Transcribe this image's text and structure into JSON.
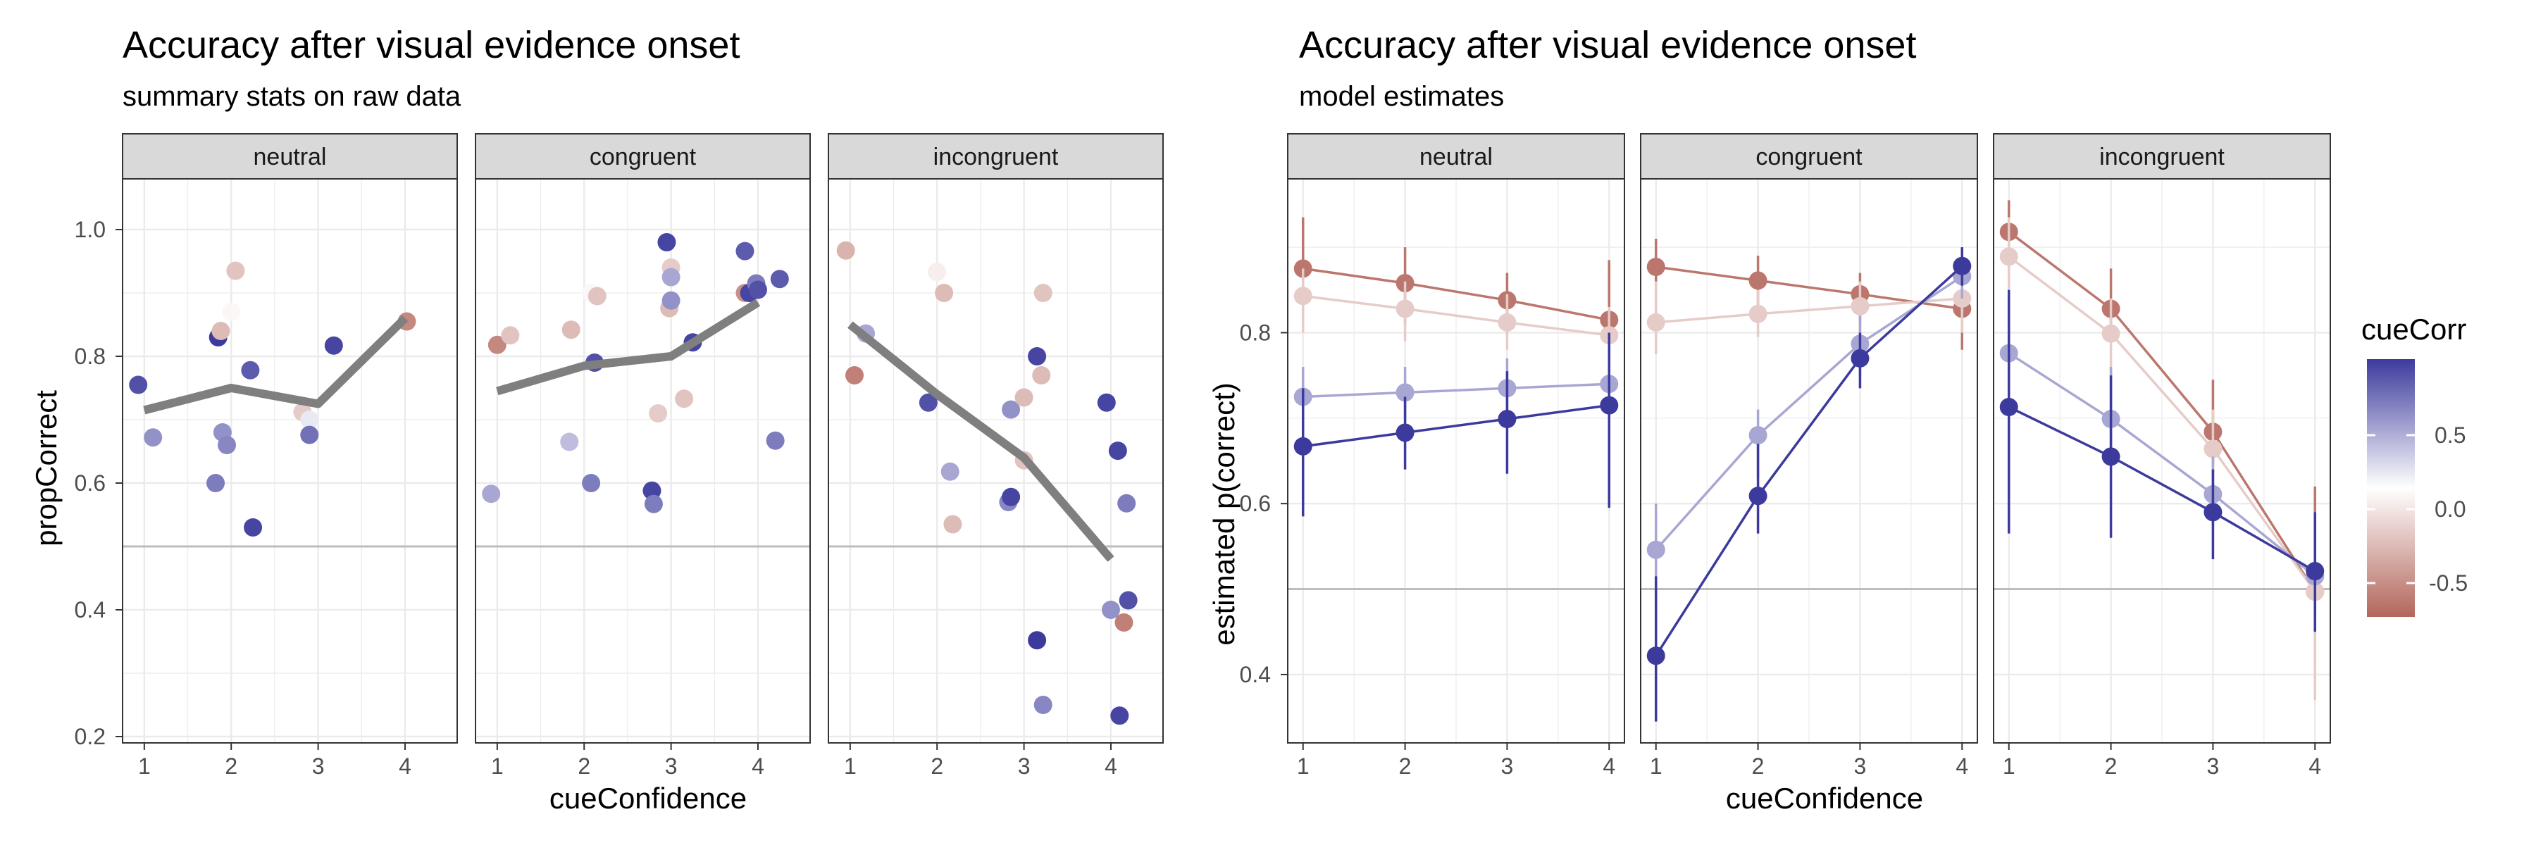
{
  "colors": {
    "positive": "#3c3a9c",
    "neutral": "#ffffff",
    "negative": "#b3665c",
    "strip_bg": "#d9d9d9",
    "grid": "#ebebeb",
    "chance_line": "#bdbdbd",
    "mean_line": "#7f7f7f"
  },
  "legend": {
    "title": "cueCorr",
    "ticks": [
      "0.5",
      "0.0",
      "-0.5"
    ],
    "placement": "right"
  },
  "chart_data": [
    {
      "type": "scatter",
      "title": "Accuracy after visual evidence onset",
      "subtitle": "summary stats on raw data",
      "xlabel": "cueConfidence",
      "ylabel": "propCorrect",
      "xlim": [
        0.75,
        4.6
      ],
      "ylim": [
        0.19,
        1.08
      ],
      "x_ticks": [
        "1",
        "2",
        "3",
        "4"
      ],
      "y_ticks": [
        "0.2",
        "0.4",
        "0.6",
        "0.8",
        "1.0"
      ],
      "reference_line": 0.5,
      "grid": true,
      "panels": [
        {
          "label": "neutral",
          "mean_line": [
            [
              1,
              0.715
            ],
            [
              2,
              0.75
            ],
            [
              3,
              0.725
            ],
            [
              4,
              0.86
            ]
          ],
          "points": [
            {
              "x": 0.93,
              "y": 0.755,
              "c": 0.8
            },
            {
              "x": 1.1,
              "y": 0.672,
              "c": 0.5
            },
            {
              "x": 1.82,
              "y": 0.6,
              "c": 0.6
            },
            {
              "x": 1.85,
              "y": 0.83,
              "c": 0.9
            },
            {
              "x": 1.88,
              "y": 0.84,
              "c": -0.4
            },
            {
              "x": 1.9,
              "y": 0.68,
              "c": 0.5
            },
            {
              "x": 1.95,
              "y": 0.66,
              "c": 0.55
            },
            {
              "x": 2.0,
              "y": 0.87,
              "c": -0.05
            },
            {
              "x": 2.05,
              "y": 0.935,
              "c": -0.35
            },
            {
              "x": 2.22,
              "y": 0.778,
              "c": 0.75
            },
            {
              "x": 2.25,
              "y": 0.53,
              "c": 0.85
            },
            {
              "x": 2.82,
              "y": 0.712,
              "c": -0.3
            },
            {
              "x": 2.9,
              "y": 0.7,
              "c": 0.1
            },
            {
              "x": 2.9,
              "y": 0.676,
              "c": 0.65
            },
            {
              "x": 3.18,
              "y": 0.817,
              "c": 0.85
            },
            {
              "x": 4.02,
              "y": 0.855,
              "c": -0.7
            }
          ]
        },
        {
          "label": "congruent",
          "mean_line": [
            [
              1,
              0.745
            ],
            [
              2,
              0.785
            ],
            [
              3,
              0.8
            ],
            [
              4,
              0.885
            ]
          ],
          "points": [
            {
              "x": 0.93,
              "y": 0.583,
              "c": 0.4
            },
            {
              "x": 1.0,
              "y": 0.818,
              "c": -0.7
            },
            {
              "x": 1.15,
              "y": 0.833,
              "c": -0.35
            },
            {
              "x": 1.83,
              "y": 0.665,
              "c": 0.3
            },
            {
              "x": 1.85,
              "y": 0.842,
              "c": -0.4
            },
            {
              "x": 2.08,
              "y": 0.9,
              "c": -0.05
            },
            {
              "x": 2.15,
              "y": 0.895,
              "c": -0.35
            },
            {
              "x": 2.12,
              "y": 0.79,
              "c": 0.8
            },
            {
              "x": 2.08,
              "y": 0.6,
              "c": 0.6
            },
            {
              "x": 2.78,
              "y": 0.588,
              "c": 0.85
            },
            {
              "x": 2.8,
              "y": 0.567,
              "c": 0.6
            },
            {
              "x": 2.85,
              "y": 0.71,
              "c": -0.3
            },
            {
              "x": 2.95,
              "y": 0.98,
              "c": 0.85
            },
            {
              "x": 3.0,
              "y": 0.94,
              "c": -0.3
            },
            {
              "x": 2.98,
              "y": 0.876,
              "c": -0.4
            },
            {
              "x": 3.0,
              "y": 0.888,
              "c": 0.5
            },
            {
              "x": 3.0,
              "y": 0.925,
              "c": 0.4
            },
            {
              "x": 3.15,
              "y": 0.733,
              "c": -0.35
            },
            {
              "x": 3.25,
              "y": 0.822,
              "c": 0.85
            },
            {
              "x": 3.85,
              "y": 0.966,
              "c": 0.75
            },
            {
              "x": 3.85,
              "y": 0.9,
              "c": -0.65
            },
            {
              "x": 3.9,
              "y": 0.9,
              "c": 0.85
            },
            {
              "x": 3.98,
              "y": 0.915,
              "c": 0.6
            },
            {
              "x": 4.0,
              "y": 0.905,
              "c": 0.8
            },
            {
              "x": 4.2,
              "y": 0.667,
              "c": 0.6
            },
            {
              "x": 4.25,
              "y": 0.922,
              "c": 0.75
            }
          ]
        },
        {
          "label": "incongruent",
          "mean_line": [
            [
              1,
              0.85
            ],
            [
              2,
              0.74
            ],
            [
              3,
              0.64
            ],
            [
              4,
              0.48
            ]
          ],
          "points": [
            {
              "x": 0.95,
              "y": 0.967,
              "c": -0.45
            },
            {
              "x": 1.05,
              "y": 0.77,
              "c": -0.75
            },
            {
              "x": 1.18,
              "y": 0.836,
              "c": 0.4
            },
            {
              "x": 1.9,
              "y": 0.727,
              "c": 0.8
            },
            {
              "x": 2.0,
              "y": 0.933,
              "c": -0.1
            },
            {
              "x": 2.08,
              "y": 0.9,
              "c": -0.4
            },
            {
              "x": 2.15,
              "y": 0.618,
              "c": 0.4
            },
            {
              "x": 2.18,
              "y": 0.535,
              "c": -0.4
            },
            {
              "x": 2.82,
              "y": 0.57,
              "c": 0.55
            },
            {
              "x": 2.85,
              "y": 0.578,
              "c": 0.85
            },
            {
              "x": 2.85,
              "y": 0.716,
              "c": 0.5
            },
            {
              "x": 3.0,
              "y": 0.735,
              "c": -0.4
            },
            {
              "x": 3.0,
              "y": 0.636,
              "c": -0.35
            },
            {
              "x": 3.15,
              "y": 0.8,
              "c": 0.85
            },
            {
              "x": 3.2,
              "y": 0.77,
              "c": -0.4
            },
            {
              "x": 3.22,
              "y": 0.9,
              "c": -0.35
            },
            {
              "x": 3.15,
              "y": 0.352,
              "c": 0.9
            },
            {
              "x": 3.22,
              "y": 0.25,
              "c": 0.55
            },
            {
              "x": 3.95,
              "y": 0.727,
              "c": 0.85
            },
            {
              "x": 4.0,
              "y": 0.4,
              "c": 0.5
            },
            {
              "x": 4.08,
              "y": 0.651,
              "c": 0.85
            },
            {
              "x": 4.15,
              "y": 0.38,
              "c": -0.75
            },
            {
              "x": 4.18,
              "y": 0.568,
              "c": 0.6
            },
            {
              "x": 4.2,
              "y": 0.415,
              "c": 0.8
            },
            {
              "x": 4.1,
              "y": 0.233,
              "c": 0.85
            }
          ]
        }
      ]
    },
    {
      "type": "line",
      "title": "Accuracy after visual evidence onset",
      "subtitle": "model estimates",
      "xlabel": "cueConfidence",
      "ylabel": "estimated p(correct)",
      "xlim": [
        0.85,
        4.15
      ],
      "ylim": [
        0.32,
        0.98
      ],
      "x_ticks": [
        "1",
        "2",
        "3",
        "4"
      ],
      "y_ticks": [
        "0.4",
        "0.6",
        "0.8"
      ],
      "reference_line": 0.5,
      "grid": true,
      "x": [
        1,
        2,
        3,
        4
      ],
      "panels": [
        {
          "label": "neutral",
          "series": [
            {
              "c": -0.8,
              "values": [
                0.875,
                0.858,
                0.838,
                0.815
              ],
              "lower": [
                0.82,
                0.81,
                0.8,
                0.75
              ],
              "upper": [
                0.935,
                0.9,
                0.87,
                0.885
              ]
            },
            {
              "c": -0.3,
              "values": [
                0.843,
                0.828,
                0.812,
                0.797
              ],
              "lower": [
                0.8,
                0.79,
                0.78,
                0.76
              ],
              "upper": [
                0.875,
                0.86,
                0.845,
                0.83
              ]
            },
            {
              "c": 0.4,
              "values": [
                0.725,
                0.73,
                0.735,
                0.74
              ],
              "lower": [
                0.69,
                0.7,
                0.7,
                0.7
              ],
              "upper": [
                0.76,
                0.76,
                0.77,
                0.78
              ]
            },
            {
              "c": 0.9,
              "values": [
                0.667,
                0.683,
                0.699,
                0.715
              ],
              "lower": [
                0.585,
                0.64,
                0.635,
                0.595
              ],
              "upper": [
                0.735,
                0.725,
                0.755,
                0.8
              ]
            }
          ]
        },
        {
          "label": "congruent",
          "series": [
            {
              "c": -0.8,
              "values": [
                0.877,
                0.861,
                0.845,
                0.828
              ],
              "lower": [
                0.83,
                0.83,
                0.81,
                0.78
              ],
              "upper": [
                0.91,
                0.89,
                0.87,
                0.86
              ]
            },
            {
              "c": -0.3,
              "values": [
                0.812,
                0.822,
                0.831,
                0.84
              ],
              "lower": [
                0.775,
                0.795,
                0.8,
                0.8
              ],
              "upper": [
                0.86,
                0.85,
                0.86,
                0.87
              ]
            },
            {
              "c": 0.4,
              "values": [
                0.546,
                0.68,
                0.787,
                0.866
              ],
              "lower": [
                0.48,
                0.63,
                0.75,
                0.84
              ],
              "upper": [
                0.6,
                0.71,
                0.82,
                0.89
              ]
            },
            {
              "c": 0.9,
              "values": [
                0.422,
                0.609,
                0.77,
                0.878
              ],
              "lower": [
                0.345,
                0.565,
                0.735,
                0.855
              ],
              "upper": [
                0.515,
                0.67,
                0.8,
                0.9
              ]
            }
          ]
        },
        {
          "label": "incongruent",
          "series": [
            {
              "c": -0.8,
              "values": [
                0.918,
                0.828,
                0.684,
                0.497
              ],
              "lower": [
                0.87,
                0.79,
                0.645,
                0.41
              ],
              "upper": [
                0.955,
                0.875,
                0.745,
                0.62
              ]
            },
            {
              "c": -0.3,
              "values": [
                0.889,
                0.799,
                0.664,
                0.497
              ],
              "lower": [
                0.83,
                0.745,
                0.615,
                0.37
              ],
              "upper": [
                0.935,
                0.84,
                0.71,
                0.58
              ]
            },
            {
              "c": 0.4,
              "values": [
                0.776,
                0.699,
                0.611,
                0.515
              ],
              "lower": [
                0.695,
                0.65,
                0.575,
                0.47
              ],
              "upper": [
                0.845,
                0.76,
                0.655,
                0.58
              ]
            },
            {
              "c": 0.9,
              "values": [
                0.713,
                0.655,
                0.59,
                0.521
              ],
              "lower": [
                0.565,
                0.56,
                0.535,
                0.45
              ],
              "upper": [
                0.85,
                0.75,
                0.64,
                0.59
              ]
            }
          ]
        }
      ]
    }
  ]
}
